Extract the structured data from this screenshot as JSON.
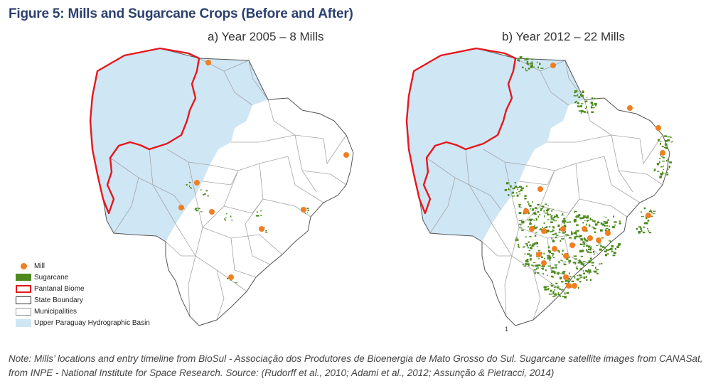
{
  "figure": {
    "title": "Figure 5: Mills and Sugarcane Crops (Before and After)"
  },
  "panels": [
    {
      "title": "a) Year 2005 – 8 Mills",
      "year": 2005,
      "mill_count": 8
    },
    {
      "title": "b) Year 2012 – 22 Mills",
      "year": 2012,
      "mill_count": 22
    }
  ],
  "legend": {
    "items": [
      {
        "label": "Mill",
        "symbol": "orange-dot",
        "color": "#f07f22"
      },
      {
        "label": "Sugarcane",
        "symbol": "green-fill",
        "color": "#4d8a1d"
      },
      {
        "label": "Pantanal Biome",
        "symbol": "red-outline",
        "color": "#e4181c"
      },
      {
        "label": "State Boundary",
        "symbol": "black-outline",
        "color": "#333333"
      },
      {
        "label": "Municipalities",
        "symbol": "grey-outline",
        "color": "#999999"
      },
      {
        "label": "Upper Paraguay Hydrographic Basin",
        "symbol": "light-blue-fill",
        "color": "#cfe6f5"
      }
    ]
  },
  "tick_mark": "1",
  "note": "Note: Mills’ locations and entry timeline from BioSul - Associação dos Produtores de Bioenergia de Mato Grosso do Sul. Sugarcane satellite images from CANASat, from INPE - National Institute for Space Research. Source: (Rudorff et al., 2010; Adami et al., 2012; Assunção & Pietracci, 2014)",
  "colors": {
    "title": "#2d4170",
    "basin": "#cfe6f5",
    "biome": "#e4181c",
    "mill": "#f07f22",
    "sugarcane": "#4d8a1d"
  }
}
